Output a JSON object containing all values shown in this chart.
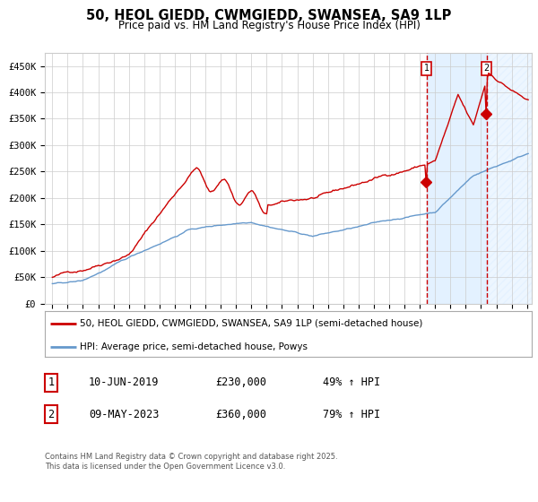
{
  "title": "50, HEOL GIEDD, CWMGIEDD, SWANSEA, SA9 1LP",
  "subtitle": "Price paid vs. HM Land Registry's House Price Index (HPI)",
  "red_label": "50, HEOL GIEDD, CWMGIEDD, SWANSEA, SA9 1LP (semi-detached house)",
  "blue_label": "HPI: Average price, semi-detached house, Powys",
  "annotation1_date": "10-JUN-2019",
  "annotation1_price": "£230,000",
  "annotation1_hpi": "49% ↑ HPI",
  "annotation2_date": "09-MAY-2023",
  "annotation2_price": "£360,000",
  "annotation2_hpi": "79% ↑ HPI",
  "footer": "Contains HM Land Registry data © Crown copyright and database right 2025.\nThis data is licensed under the Open Government Licence v3.0.",
  "ylim": [
    0,
    475000
  ],
  "yticks": [
    0,
    50000,
    100000,
    150000,
    200000,
    250000,
    300000,
    350000,
    400000,
    450000
  ],
  "ytick_labels": [
    "£0",
    "£50K",
    "£100K",
    "£150K",
    "£200K",
    "£250K",
    "£300K",
    "£350K",
    "£400K",
    "£450K"
  ],
  "red_color": "#cc0000",
  "blue_color": "#6699cc",
  "marker_color": "#cc0000",
  "vline_color": "#cc0000",
  "shade_color": "#ddeeff",
  "hatch_color": "#aabbcc",
  "bg_color": "#ffffff",
  "grid_color": "#cccccc",
  "annotation1_year": 2019.44,
  "annotation2_year": 2023.36,
  "start_year": 1995,
  "end_year": 2026
}
